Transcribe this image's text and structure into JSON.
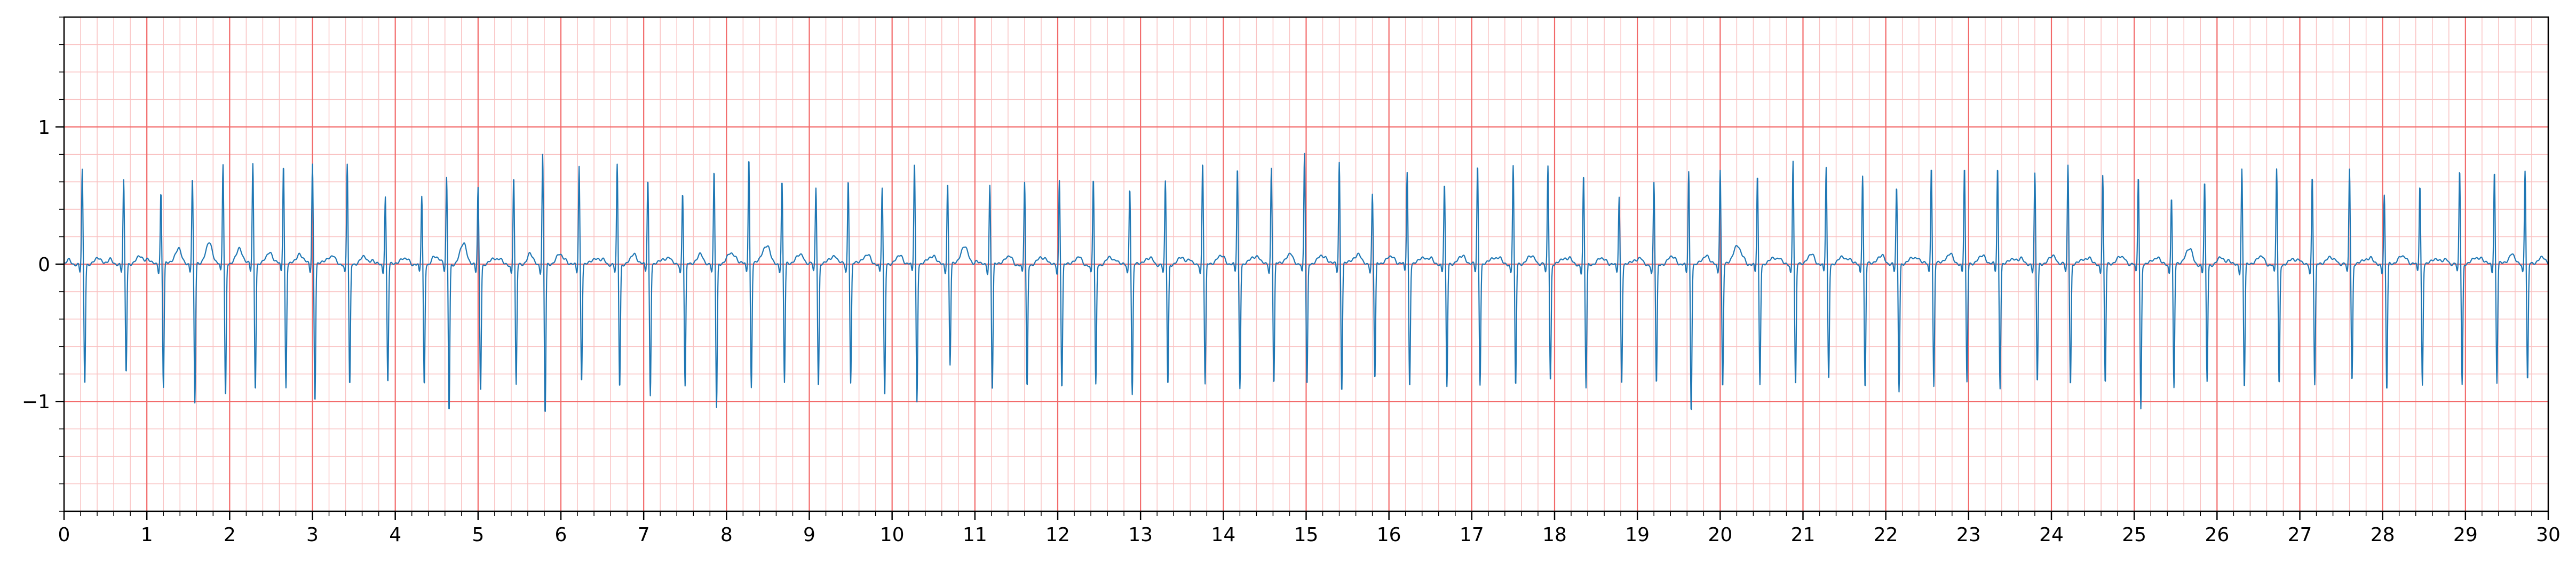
{
  "chart_data": {
    "type": "line",
    "title": "",
    "xlabel": "",
    "ylabel": "",
    "xlim": [
      0,
      30
    ],
    "ylim": [
      -1.8,
      1.8
    ],
    "grid": {
      "major_x_step": 1,
      "minor_x_step": 0.2,
      "major_y_step": 1,
      "minor_y_step": 0.2,
      "major_color": "#f26a6a",
      "minor_color": "#f9c2c2"
    },
    "x_ticks": [
      0,
      1,
      2,
      3,
      4,
      5,
      6,
      7,
      8,
      9,
      10,
      11,
      12,
      13,
      14,
      15,
      16,
      17,
      18,
      19,
      20,
      21,
      22,
      23,
      24,
      25,
      26,
      27,
      28,
      29,
      30
    ],
    "x_tick_labels": [
      "0",
      "1",
      "2",
      "3",
      "4",
      "5",
      "6",
      "7",
      "8",
      "9",
      "10",
      "11",
      "12",
      "13",
      "14",
      "15",
      "16",
      "17",
      "18",
      "19",
      "20",
      "21",
      "22",
      "23",
      "24",
      "25",
      "26",
      "27",
      "28",
      "29",
      "30"
    ],
    "y_ticks": [
      -1,
      0,
      1
    ],
    "y_tick_labels": [
      "−1",
      "0",
      "1"
    ],
    "series": [
      {
        "color": "#1f77b4",
        "beat_times": [
          0.22,
          0.72,
          1.17,
          1.55,
          1.92,
          2.28,
          2.65,
          3.0,
          3.42,
          3.88,
          4.32,
          4.62,
          5.0,
          5.43,
          5.78,
          6.22,
          6.68,
          7.05,
          7.47,
          7.85,
          8.27,
          8.67,
          9.08,
          9.47,
          9.88,
          10.27,
          10.67,
          11.18,
          11.6,
          12.02,
          12.43,
          12.87,
          13.3,
          13.75,
          14.17,
          14.58,
          14.98,
          15.4,
          15.8,
          16.22,
          16.67,
          17.07,
          17.5,
          17.92,
          18.35,
          18.78,
          19.2,
          19.62,
          20.0,
          20.45,
          20.88,
          21.28,
          21.72,
          22.13,
          22.55,
          22.95,
          23.35,
          23.8,
          24.2,
          24.62,
          25.05,
          25.45,
          25.85,
          26.3,
          26.72,
          27.15,
          27.6,
          28.02,
          28.45,
          28.93,
          29.35,
          29.72
        ],
        "r_peaks": [
          0.68,
          0.6,
          0.52,
          0.62,
          0.72,
          0.72,
          0.73,
          0.73,
          0.73,
          0.5,
          0.5,
          0.62,
          0.56,
          0.65,
          0.8,
          0.72,
          0.72,
          0.62,
          0.52,
          0.67,
          0.78,
          0.6,
          0.55,
          0.62,
          0.55,
          0.75,
          0.6,
          0.58,
          0.6,
          0.62,
          0.63,
          0.57,
          0.6,
          0.75,
          0.7,
          0.7,
          0.8,
          0.74,
          0.5,
          0.67,
          0.58,
          0.72,
          0.72,
          0.72,
          0.65,
          0.5,
          0.6,
          0.68,
          0.7,
          0.65,
          0.76,
          0.7,
          0.65,
          0.55,
          0.72,
          0.7,
          0.7,
          0.65,
          0.72,
          0.65,
          0.65,
          0.5,
          0.6,
          0.7,
          0.7,
          0.65,
          0.7,
          0.5,
          0.58,
          0.68,
          0.68,
          0.68
        ],
        "s_troughs": [
          -0.88,
          -0.8,
          -0.9,
          -1.02,
          -0.98,
          -0.92,
          -0.9,
          -1.0,
          -0.9,
          -0.87,
          -0.88,
          -1.08,
          -0.92,
          -0.88,
          -1.1,
          -0.85,
          -0.9,
          -0.95,
          -0.9,
          -1.05,
          -0.9,
          -0.87,
          -0.9,
          -0.87,
          -0.98,
          -1.0,
          -0.73,
          -0.92,
          -0.9,
          -0.9,
          -0.88,
          -0.95,
          -0.88,
          -0.88,
          -0.9,
          -0.88,
          -0.9,
          -0.93,
          -0.85,
          -0.9,
          -0.9,
          -0.87,
          -0.9,
          -0.85,
          -0.9,
          -0.87,
          -0.88,
          -1.07,
          -0.9,
          -0.87,
          -0.9,
          -0.85,
          -0.92,
          -0.93,
          -0.9,
          -0.87,
          -0.9,
          -0.87,
          -0.88,
          -0.88,
          -1.05,
          -0.9,
          -0.85,
          -0.9,
          -0.88,
          -0.88,
          -0.85,
          -0.93,
          -0.88,
          -0.88,
          -0.87,
          -0.87
        ],
        "t_waves": [
          0.04,
          0.05,
          0.08,
          0.12,
          0.08,
          0.06,
          0.05,
          0.05,
          0.05,
          0.04,
          0.05,
          0.13,
          0.05,
          0.05,
          0.07,
          0.05,
          0.05,
          0.04,
          0.04,
          0.07,
          0.12,
          0.05,
          0.04,
          0.05,
          0.04,
          0.05,
          0.13,
          0.05,
          0.05,
          0.04,
          0.05,
          0.04,
          0.05,
          0.05,
          0.05,
          0.05,
          0.05,
          0.05,
          0.04,
          0.05,
          0.04,
          0.05,
          0.05,
          0.05,
          0.04,
          0.04,
          0.05,
          0.05,
          0.14,
          0.05,
          0.05,
          0.05,
          0.04,
          0.04,
          0.05,
          0.04,
          0.04,
          0.04,
          0.04,
          0.05,
          0.04,
          0.1,
          0.05,
          0.05,
          0.04,
          0.05,
          0.04,
          0.05,
          0.04,
          0.04,
          0.04,
          0.04
        ]
      }
    ]
  }
}
